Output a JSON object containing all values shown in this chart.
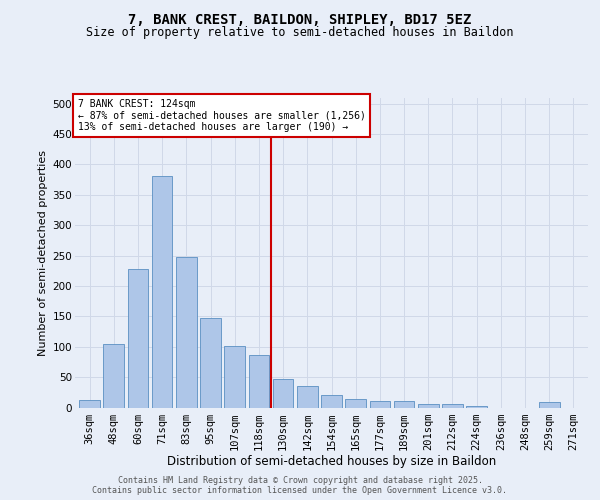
{
  "title": "7, BANK CREST, BAILDON, SHIPLEY, BD17 5EZ",
  "subtitle": "Size of property relative to semi-detached houses in Baildon",
  "xlabel": "Distribution of semi-detached houses by size in Baildon",
  "ylabel": "Number of semi-detached properties",
  "bar_labels": [
    "36sqm",
    "48sqm",
    "60sqm",
    "71sqm",
    "83sqm",
    "95sqm",
    "107sqm",
    "118sqm",
    "130sqm",
    "142sqm",
    "154sqm",
    "165sqm",
    "177sqm",
    "189sqm",
    "201sqm",
    "212sqm",
    "224sqm",
    "236sqm",
    "248sqm",
    "259sqm",
    "271sqm"
  ],
  "bar_values": [
    13,
    105,
    228,
    381,
    248,
    148,
    101,
    86,
    47,
    36,
    21,
    14,
    11,
    11,
    5,
    5,
    2,
    0,
    0,
    9,
    0
  ],
  "bar_color": "#aec6e8",
  "bar_edge_color": "#5a8fc2",
  "grid_color": "#d0d8e8",
  "background_color": "#e8eef8",
  "vline_color": "#cc0000",
  "annotation_title": "7 BANK CREST: 124sqm",
  "annotation_line1": "← 87% of semi-detached houses are smaller (1,256)",
  "annotation_line2": "13% of semi-detached houses are larger (190) →",
  "annotation_box_color": "#cc0000",
  "annotation_bg": "#ffffff",
  "ylim": [
    0,
    510
  ],
  "yticks": [
    0,
    50,
    100,
    150,
    200,
    250,
    300,
    350,
    400,
    450,
    500
  ],
  "footer_line1": "Contains HM Land Registry data © Crown copyright and database right 2025.",
  "footer_line2": "Contains public sector information licensed under the Open Government Licence v3.0."
}
